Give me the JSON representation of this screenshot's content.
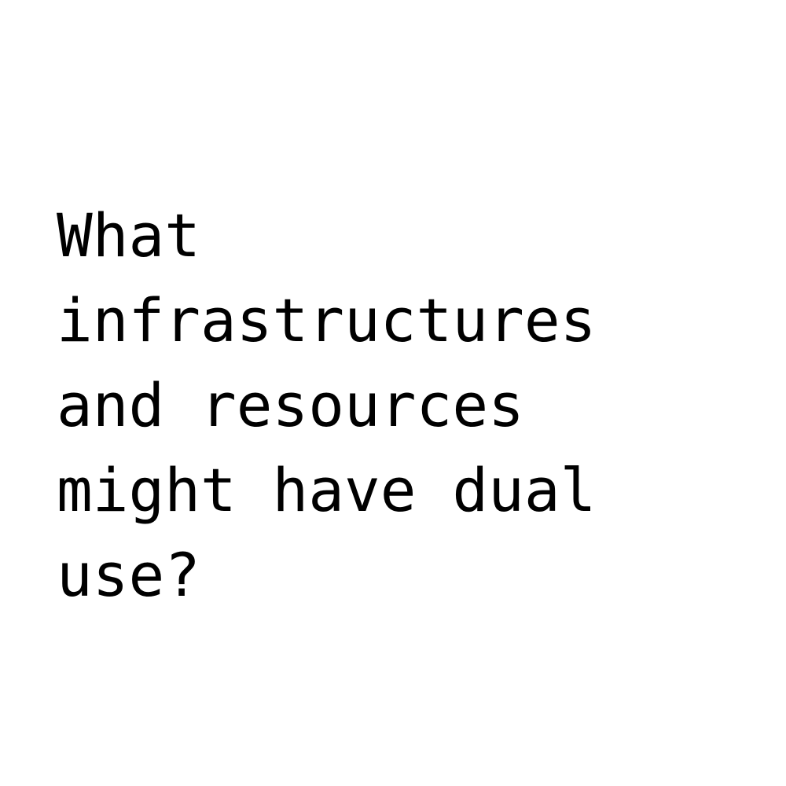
{
  "question": {
    "lines": [
      "What",
      "infrastructures",
      "and resources",
      "might have dual",
      "use?"
    ]
  },
  "colors": {
    "background": "#ffffff",
    "text": "#000000"
  }
}
